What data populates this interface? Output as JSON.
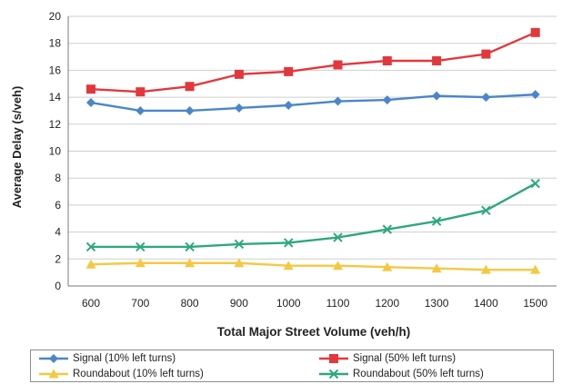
{
  "chart_data": {
    "type": "line",
    "title": "",
    "xlabel": "Total Major Street Volume (veh/h)",
    "ylabel": "Average Delay (s/veh)",
    "x": [
      600,
      700,
      800,
      900,
      1000,
      1100,
      1200,
      1300,
      1400,
      1500
    ],
    "xticks": [
      "600",
      "700",
      "800",
      "900",
      "1000",
      "1100",
      "1200",
      "1300",
      "1400",
      "1500"
    ],
    "ylim": [
      0,
      20
    ],
    "yticks": [
      "0",
      "2",
      "4",
      "6",
      "8",
      "10",
      "12",
      "14",
      "16",
      "18",
      "20"
    ],
    "grid": "horizontal",
    "legend_position": "bottom",
    "series": [
      {
        "name": "Signal (10% left turns)",
        "color": "#4a86c8",
        "marker": "diamond",
        "values": [
          13.6,
          13.0,
          13.0,
          13.2,
          13.4,
          13.7,
          13.8,
          14.1,
          14.0,
          14.2
        ]
      },
      {
        "name": "Signal (50% left turns)",
        "color": "#e2383c",
        "marker": "square",
        "values": [
          14.6,
          14.4,
          14.8,
          15.7,
          15.9,
          16.4,
          16.7,
          16.7,
          17.2,
          18.8
        ]
      },
      {
        "name": "Roundabout (10% left turns)",
        "color": "#f5c842",
        "marker": "triangle",
        "values": [
          1.6,
          1.7,
          1.7,
          1.7,
          1.5,
          1.5,
          1.4,
          1.3,
          1.2,
          1.2
        ]
      },
      {
        "name": "Roundabout (50% left turns)",
        "color": "#2ea87e",
        "marker": "x",
        "values": [
          2.9,
          2.9,
          2.9,
          3.1,
          3.2,
          3.6,
          4.2,
          4.8,
          5.6,
          7.6
        ]
      }
    ]
  }
}
